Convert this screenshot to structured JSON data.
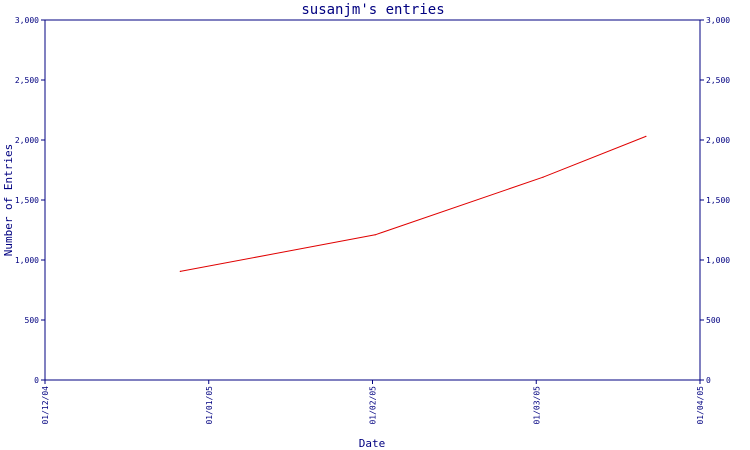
{
  "chart_data": {
    "type": "line",
    "title": "susanjm's entries",
    "xlabel": "Date",
    "ylabel": "Number of Entries",
    "x_ticks": [
      "01/12/04",
      "01/01/05",
      "01/02/05",
      "01/03/05",
      "01/04/05"
    ],
    "y_ticks": [
      "0",
      "500",
      "1,000",
      "1,500",
      "2,000",
      "2,500",
      "3,000"
    ],
    "ylim": [
      0,
      3000
    ],
    "xlim": [
      "2004-12-01",
      "2005-04-01"
    ],
    "grid": false,
    "series": [
      {
        "color": "#e00000",
        "x": [
          "2004-12-26",
          "2005-01-31",
          "2005-03-03",
          "2005-03-22"
        ],
        "y": [
          905,
          1210,
          1690,
          2030
        ]
      }
    ]
  }
}
